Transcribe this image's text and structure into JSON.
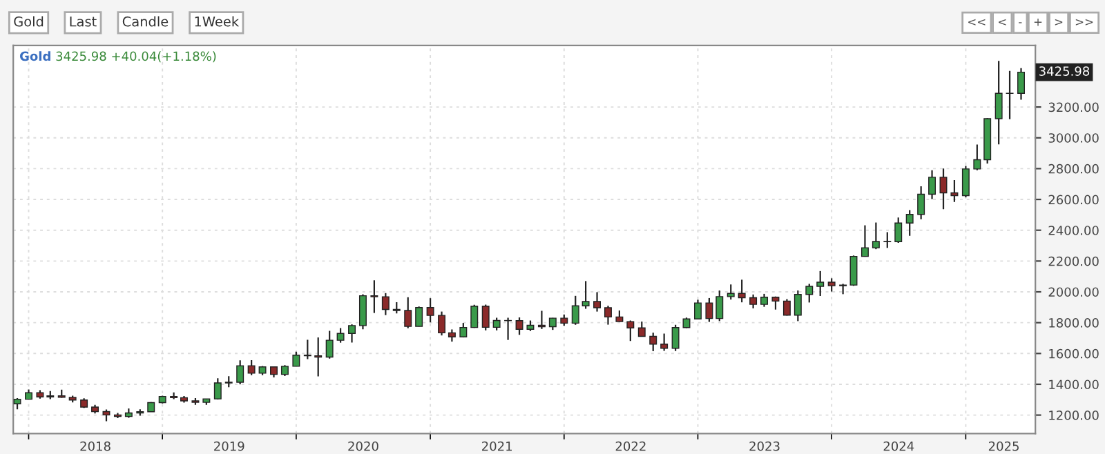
{
  "chart_data": {
    "type": "candlestick",
    "title": "Gold",
    "subtitle": "3425.98 +40.04(+1.18%)",
    "annotations": [
      {
        "text": "3425.98",
        "x": "2025-06",
        "y": 3425.98
      },
      "Gold",
      "Last",
      "Candle",
      "1Week",
      "<<",
      "<",
      "-",
      "+",
      ">",
      ">>"
    ],
    "x": [
      "2017-12",
      "2018-01",
      "2018-02",
      "2018-03",
      "2018-04",
      "2018-05",
      "2018-06",
      "2018-07",
      "2018-08",
      "2018-09",
      "2018-10",
      "2018-11",
      "2018-12",
      "2019-01",
      "2019-02",
      "2019-03",
      "2019-04",
      "2019-05",
      "2019-06",
      "2019-07",
      "2019-08",
      "2019-09",
      "2019-10",
      "2019-11",
      "2019-12",
      "2020-01",
      "2020-02",
      "2020-03",
      "2020-04",
      "2020-05",
      "2020-06",
      "2020-07",
      "2020-08",
      "2020-09",
      "2020-10",
      "2020-11",
      "2020-12",
      "2021-01",
      "2021-02",
      "2021-03",
      "2021-04",
      "2021-05",
      "2021-06",
      "2021-07",
      "2021-08",
      "2021-09",
      "2021-10",
      "2021-11",
      "2021-12",
      "2022-01",
      "2022-02",
      "2022-03",
      "2022-04",
      "2022-05",
      "2022-06",
      "2022-07",
      "2022-08",
      "2022-09",
      "2022-10",
      "2022-11",
      "2022-12",
      "2023-01",
      "2023-02",
      "2023-03",
      "2023-04",
      "2023-05",
      "2023-06",
      "2023-07",
      "2023-08",
      "2023-09",
      "2023-10",
      "2023-11",
      "2023-12",
      "2024-01",
      "2024-02",
      "2024-03",
      "2024-04",
      "2024-05",
      "2024-06",
      "2024-07",
      "2024-08",
      "2024-09",
      "2024-10",
      "2024-11",
      "2024-12",
      "2025-01",
      "2025-02",
      "2025-03",
      "2025-04",
      "2025-05",
      "2025-06"
    ],
    "ohlc": [
      [
        1273,
        1310,
        1237,
        1303
      ],
      [
        1303,
        1366,
        1302,
        1345
      ],
      [
        1345,
        1362,
        1307,
        1318
      ],
      [
        1318,
        1356,
        1303,
        1325
      ],
      [
        1325,
        1365,
        1312,
        1315
      ],
      [
        1315,
        1326,
        1282,
        1298
      ],
      [
        1298,
        1309,
        1246,
        1252
      ],
      [
        1252,
        1266,
        1211,
        1223
      ],
      [
        1223,
        1236,
        1160,
        1201
      ],
      [
        1201,
        1214,
        1180,
        1191
      ],
      [
        1191,
        1243,
        1182,
        1214
      ],
      [
        1214,
        1237,
        1196,
        1222
      ],
      [
        1222,
        1284,
        1221,
        1281
      ],
      [
        1281,
        1326,
        1275,
        1321
      ],
      [
        1321,
        1347,
        1303,
        1313
      ],
      [
        1313,
        1324,
        1281,
        1292
      ],
      [
        1292,
        1310,
        1266,
        1283
      ],
      [
        1283,
        1306,
        1267,
        1305
      ],
      [
        1305,
        1439,
        1301,
        1409
      ],
      [
        1409,
        1452,
        1381,
        1413
      ],
      [
        1413,
        1555,
        1400,
        1520
      ],
      [
        1520,
        1557,
        1459,
        1472
      ],
      [
        1472,
        1518,
        1459,
        1513
      ],
      [
        1513,
        1516,
        1445,
        1464
      ],
      [
        1464,
        1524,
        1454,
        1517
      ],
      [
        1517,
        1611,
        1517,
        1589
      ],
      [
        1589,
        1689,
        1563,
        1585
      ],
      [
        1585,
        1704,
        1451,
        1577
      ],
      [
        1577,
        1747,
        1567,
        1686
      ],
      [
        1686,
        1765,
        1670,
        1730
      ],
      [
        1730,
        1789,
        1671,
        1781
      ],
      [
        1781,
        1984,
        1757,
        1975
      ],
      [
        1975,
        2075,
        1863,
        1968
      ],
      [
        1968,
        1992,
        1849,
        1886
      ],
      [
        1886,
        1933,
        1860,
        1879
      ],
      [
        1879,
        1965,
        1764,
        1776
      ],
      [
        1776,
        1905,
        1775,
        1898
      ],
      [
        1898,
        1959,
        1802,
        1847
      ],
      [
        1847,
        1872,
        1717,
        1734
      ],
      [
        1734,
        1756,
        1677,
        1708
      ],
      [
        1708,
        1798,
        1704,
        1769
      ],
      [
        1769,
        1916,
        1766,
        1907
      ],
      [
        1907,
        1917,
        1750,
        1770
      ],
      [
        1770,
        1832,
        1750,
        1814
      ],
      [
        1814,
        1832,
        1688,
        1813
      ],
      [
        1813,
        1834,
        1721,
        1757
      ],
      [
        1757,
        1814,
        1746,
        1783
      ],
      [
        1783,
        1877,
        1759,
        1774
      ],
      [
        1774,
        1831,
        1753,
        1829
      ],
      [
        1829,
        1853,
        1780,
        1797
      ],
      [
        1797,
        1974,
        1786,
        1909
      ],
      [
        1909,
        2070,
        1890,
        1937
      ],
      [
        1937,
        1998,
        1872,
        1897
      ],
      [
        1897,
        1910,
        1787,
        1837
      ],
      [
        1837,
        1879,
        1805,
        1807
      ],
      [
        1807,
        1814,
        1681,
        1766
      ],
      [
        1766,
        1807,
        1710,
        1711
      ],
      [
        1711,
        1735,
        1615,
        1661
      ],
      [
        1661,
        1729,
        1617,
        1634
      ],
      [
        1634,
        1786,
        1616,
        1768
      ],
      [
        1768,
        1833,
        1765,
        1824
      ],
      [
        1824,
        1949,
        1823,
        1928
      ],
      [
        1928,
        1960,
        1805,
        1827
      ],
      [
        1827,
        2009,
        1810,
        1969
      ],
      [
        1969,
        2048,
        1950,
        1990
      ],
      [
        1990,
        2079,
        1932,
        1962
      ],
      [
        1962,
        1983,
        1893,
        1919
      ],
      [
        1919,
        1987,
        1903,
        1965
      ],
      [
        1965,
        1970,
        1885,
        1940
      ],
      [
        1940,
        1953,
        1846,
        1849
      ],
      [
        1849,
        2009,
        1810,
        1983
      ],
      [
        1983,
        2052,
        1931,
        2036
      ],
      [
        2036,
        2135,
        1973,
        2063
      ],
      [
        2063,
        2088,
        2002,
        2040
      ],
      [
        2040,
        2052,
        1985,
        2044
      ],
      [
        2044,
        2236,
        2039,
        2230
      ],
      [
        2230,
        2432,
        2228,
        2286
      ],
      [
        2286,
        2450,
        2277,
        2327
      ],
      [
        2327,
        2388,
        2286,
        2326
      ],
      [
        2326,
        2483,
        2318,
        2447
      ],
      [
        2447,
        2531,
        2364,
        2503
      ],
      [
        2503,
        2685,
        2472,
        2634
      ],
      [
        2634,
        2790,
        2603,
        2744
      ],
      [
        2744,
        2801,
        2536,
        2643
      ],
      [
        2643,
        2726,
        2583,
        2625
      ],
      [
        2625,
        2817,
        2614,
        2798
      ],
      [
        2798,
        2956,
        2789,
        2858
      ],
      [
        2858,
        3128,
        2833,
        3124
      ],
      [
        3124,
        3500,
        2957,
        3289
      ],
      [
        3289,
        3435,
        3121,
        3289
      ],
      [
        3289,
        3452,
        3248,
        3425.98
      ]
    ],
    "colors": [
      "#3a9a4a",
      "#3a9a4a",
      "#8b2a2a",
      "#3a9a4a",
      "#8b2a2a",
      "#8b2a2a",
      "#8b2a2a",
      "#8b2a2a",
      "#8b2a2a",
      "#8b2a2a",
      "#3a9a4a",
      "#3a9a4a",
      "#3a9a4a",
      "#3a9a4a",
      "#8b2a2a",
      "#8b2a2a",
      "#8b2a2a",
      "#3a9a4a",
      "#3a9a4a",
      "#3a9a4a",
      "#3a9a4a",
      "#8b2a2a",
      "#3a9a4a",
      "#8b2a2a",
      "#3a9a4a",
      "#3a9a4a",
      "#8b2a2a",
      "#8b2a2a",
      "#3a9a4a",
      "#3a9a4a",
      "#3a9a4a",
      "#3a9a4a",
      "#8b2a2a",
      "#8b2a2a",
      "#8b2a2a",
      "#8b2a2a",
      "#3a9a4a",
      "#8b2a2a",
      "#8b2a2a",
      "#8b2a2a",
      "#3a9a4a",
      "#3a9a4a",
      "#8b2a2a",
      "#3a9a4a",
      "#8b2a2a",
      "#8b2a2a",
      "#3a9a4a",
      "#8b2a2a",
      "#3a9a4a",
      "#8b2a2a",
      "#3a9a4a",
      "#3a9a4a",
      "#8b2a2a",
      "#8b2a2a",
      "#8b2a2a",
      "#8b2a2a",
      "#8b2a2a",
      "#8b2a2a",
      "#8b2a2a",
      "#3a9a4a",
      "#3a9a4a",
      "#3a9a4a",
      "#8b2a2a",
      "#3a9a4a",
      "#3a9a4a",
      "#8b2a2a",
      "#8b2a2a",
      "#3a9a4a",
      "#8b2a2a",
      "#8b2a2a",
      "#3a9a4a",
      "#3a9a4a",
      "#3a9a4a",
      "#8b2a2a",
      "#3a9a4a",
      "#3a9a4a",
      "#3a9a4a",
      "#3a9a4a",
      "#8b2a2a",
      "#3a9a4a",
      "#3a9a4a",
      "#3a9a4a",
      "#3a9a4a",
      "#8b2a2a",
      "#8b2a2a",
      "#3a9a4a",
      "#3a9a4a",
      "#3a9a4a",
      "#3a9a4a",
      "#3a9a4a",
      "#3a9a4a"
    ],
    "xlim": [
      "2017-11-20",
      "2025-07-10"
    ],
    "xticks": [
      {
        "value": "2018-01-01",
        "label": null
      },
      {
        "value": "2018-07-02",
        "label": "2018"
      },
      {
        "value": "2019-01-01",
        "label": null
      },
      {
        "value": "2019-07-02",
        "label": "2019"
      },
      {
        "value": "2020-01-01",
        "label": null
      },
      {
        "value": "2020-07-02",
        "label": "2020"
      },
      {
        "value": "2021-01-01",
        "label": null
      },
      {
        "value": "2021-07-02",
        "label": "2021"
      },
      {
        "value": "2022-01-01",
        "label": null
      },
      {
        "value": "2022-07-02",
        "label": "2022"
      },
      {
        "value": "2023-01-01",
        "label": null
      },
      {
        "value": "2023-07-02",
        "label": "2023"
      },
      {
        "value": "2024-01-01",
        "label": null
      },
      {
        "value": "2024-07-02",
        "label": "2024"
      },
      {
        "value": "2025-01-01",
        "label": null
      },
      {
        "value": "2025-04-15",
        "label": "2025"
      }
    ],
    "ylim": [
      1080,
      3600
    ],
    "yticks": [
      {
        "value": 1200,
        "label": "1200.00"
      },
      {
        "value": 1400,
        "label": "1400.00"
      },
      {
        "value": 1600,
        "label": "1600.00"
      },
      {
        "value": 1800,
        "label": "1800.00"
      },
      {
        "value": 2000,
        "label": "2000.00"
      },
      {
        "value": 2200,
        "label": "2200.00"
      },
      {
        "value": 2400,
        "label": "2400.00"
      },
      {
        "value": 2600,
        "label": "2600.00"
      },
      {
        "value": 2800,
        "label": "2800.00"
      },
      {
        "value": 3000,
        "label": "3000.00"
      },
      {
        "value": 3200,
        "label": "3200.00"
      }
    ],
    "grid": true
  }
}
